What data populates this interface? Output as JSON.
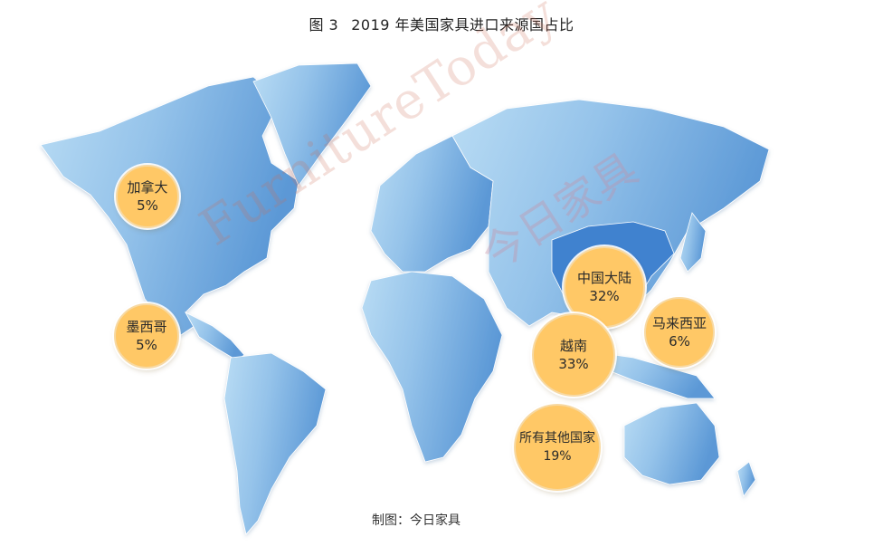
{
  "title": {
    "fig_no": "图 3",
    "text": "2019 年美国家具进口来源国占比"
  },
  "watermark": {
    "latin": "FurnitureToday",
    "cn": "今日家具"
  },
  "credit": "制图：今日家具",
  "colors": {
    "bubble": "#ffc866",
    "land_light": "#a9d3f0",
    "land_dark": "#4f8fd0",
    "china": "#2f79c9"
  },
  "bubbles": [
    {
      "name": "加拿大",
      "value": "5%"
    },
    {
      "name": "墨西哥",
      "value": "5%"
    },
    {
      "name": "中国大陆",
      "value": "32%"
    },
    {
      "name": "越南",
      "value": "33%"
    },
    {
      "name": "马来西亚",
      "value": "6%"
    },
    {
      "name": "所有其他国家",
      "value": "19%"
    }
  ]
}
